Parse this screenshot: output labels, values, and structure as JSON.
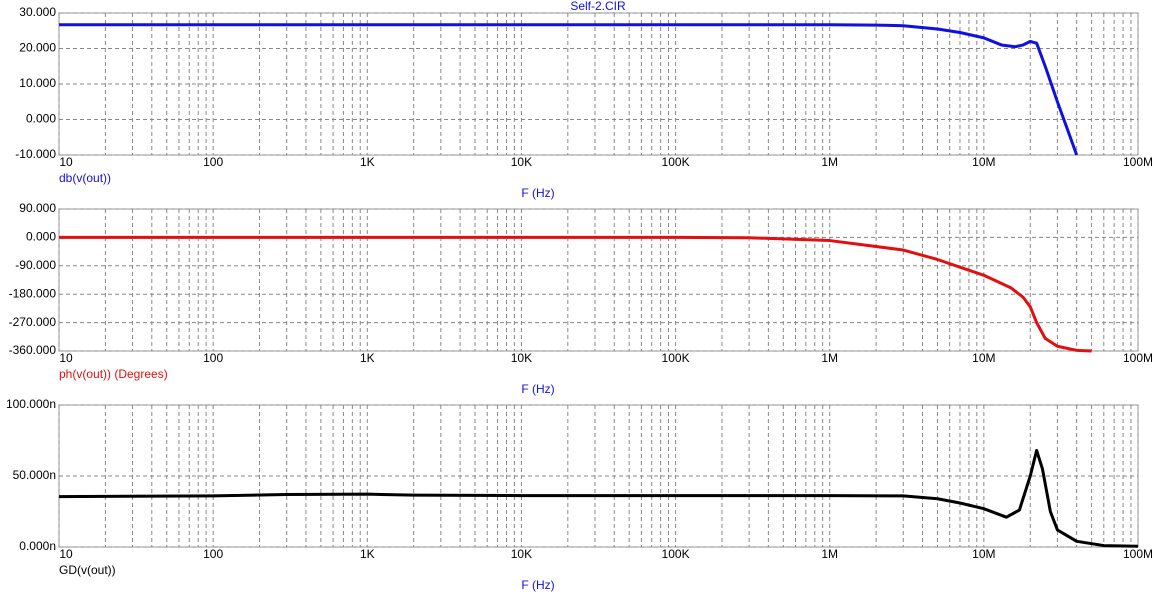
{
  "chart_data": [
    {
      "type": "line",
      "title": "Self-2.CIR",
      "xscale": "log",
      "grid": true,
      "xlabel": "F (Hz)",
      "x": [
        10,
        100,
        1000,
        10000,
        100000,
        1000000,
        2000000,
        3000000,
        5000000,
        7000000,
        10000000,
        13000000,
        16000000,
        18000000,
        20000000,
        22000000,
        25000000,
        30000000,
        35000000,
        40000000
      ],
      "series": [
        {
          "name": "db(v(out))",
          "color": "#1010e0",
          "values": [
            26.7,
            26.7,
            26.7,
            26.7,
            26.7,
            26.7,
            26.6,
            26.4,
            25.5,
            24.5,
            23,
            21,
            20.5,
            21,
            22,
            21.5,
            15,
            5,
            -3,
            -10
          ]
        }
      ],
      "xlim": [
        10,
        100000000
      ],
      "xticks": [
        10,
        100,
        {
          "value": 1000,
          "label": "1K"
        },
        {
          "value": 10000,
          "label": "10K"
        },
        {
          "value": 100000,
          "label": "100K"
        },
        {
          "value": 1000000,
          "label": "1M"
        },
        {
          "value": 10000000,
          "label": "10M"
        },
        {
          "value": 100000000,
          "label": "100M"
        }
      ],
      "minor_xticks": [
        20,
        30,
        40,
        50,
        60,
        70,
        80,
        90,
        200,
        300,
        400,
        500,
        600,
        700,
        800,
        900,
        2000,
        3000,
        4000,
        5000,
        6000,
        7000,
        8000,
        9000,
        20000,
        30000,
        40000,
        50000,
        60000,
        70000,
        80000,
        90000,
        200000,
        300000,
        400000,
        500000,
        600000,
        700000,
        800000,
        900000,
        2000000,
        3000000,
        4000000,
        5000000,
        6000000,
        7000000,
        8000000,
        9000000,
        20000000,
        30000000,
        40000000,
        50000000,
        60000000,
        70000000,
        80000000,
        90000000
      ],
      "ylim": [
        -10,
        30
      ],
      "yticks": [
        {
          "value": 30,
          "label": "30.000"
        },
        {
          "value": 20,
          "label": "20.000"
        },
        {
          "value": 10,
          "label": "10.000"
        },
        {
          "value": 0,
          "label": "0.000"
        },
        {
          "value": -10,
          "label": "-10.000"
        }
      ]
    },
    {
      "type": "line",
      "xscale": "log",
      "grid": true,
      "xlabel": "F (Hz)",
      "x": [
        10,
        100,
        1000,
        10000,
        100000,
        300000,
        1000000,
        3000000,
        5000000,
        10000000,
        15000000,
        18000000,
        20000000,
        22000000,
        25000000,
        30000000,
        40000000,
        50000000
      ],
      "series": [
        {
          "name": "ph(v(out)) (Degrees)",
          "color": "#e01010",
          "values": [
            0,
            0,
            0,
            0,
            0,
            -1,
            -10,
            -40,
            -70,
            -120,
            -160,
            -190,
            -220,
            -270,
            -320,
            -345,
            -358,
            -360
          ]
        }
      ],
      "xlim": [
        10,
        100000000
      ],
      "xticks": [
        10,
        100,
        {
          "value": 1000,
          "label": "1K"
        },
        {
          "value": 10000,
          "label": "10K"
        },
        {
          "value": 100000,
          "label": "100K"
        },
        {
          "value": 1000000,
          "label": "1M"
        },
        {
          "value": 10000000,
          "label": "10M"
        },
        {
          "value": 100000000,
          "label": "100M"
        }
      ],
      "minor_xticks": [
        20,
        30,
        40,
        50,
        60,
        70,
        80,
        90,
        200,
        300,
        400,
        500,
        600,
        700,
        800,
        900,
        2000,
        3000,
        4000,
        5000,
        6000,
        7000,
        8000,
        9000,
        20000,
        30000,
        40000,
        50000,
        60000,
        70000,
        80000,
        90000,
        200000,
        300000,
        400000,
        500000,
        600000,
        700000,
        800000,
        900000,
        2000000,
        3000000,
        4000000,
        5000000,
        6000000,
        7000000,
        8000000,
        9000000,
        20000000,
        30000000,
        40000000,
        50000000,
        60000000,
        70000000,
        80000000,
        90000000
      ],
      "ylim": [
        -360,
        90
      ],
      "yticks": [
        {
          "value": 90,
          "label": "90.000"
        },
        {
          "value": 0,
          "label": "0.000"
        },
        {
          "value": -90,
          "label": "-90.000"
        },
        {
          "value": -180,
          "label": "-180.000"
        },
        {
          "value": -270,
          "label": "-270.000"
        },
        {
          "value": -360,
          "label": "-360.000"
        }
      ]
    },
    {
      "type": "line",
      "xscale": "log",
      "grid": true,
      "xlabel": "F (Hz)",
      "x": [
        10,
        100,
        300,
        1000,
        2000,
        10000,
        100000,
        1000000,
        3000000,
        5000000,
        7000000,
        10000000,
        14000000,
        17000000,
        20000000,
        22000000,
        24000000,
        27000000,
        30000000,
        40000000,
        60000000,
        100000000
      ],
      "series": [
        {
          "name": "GD(v(out))",
          "color": "#000000",
          "values": [
            3.55e-08,
            3.6e-08,
            3.7e-08,
            3.72e-08,
            3.65e-08,
            3.62e-08,
            3.62e-08,
            3.62e-08,
            3.6e-08,
            3.4e-08,
            3.1e-08,
            2.7e-08,
            2.1e-08,
            2.6e-08,
            5e-08,
            6.8e-08,
            5.5e-08,
            2.5e-08,
            1.2e-08,
            4e-09,
            1e-09,
            5e-10
          ]
        }
      ],
      "xlim": [
        10,
        100000000
      ],
      "xticks": [
        10,
        100,
        {
          "value": 1000,
          "label": "1K"
        },
        {
          "value": 10000,
          "label": "10K"
        },
        {
          "value": 100000,
          "label": "100K"
        },
        {
          "value": 1000000,
          "label": "1M"
        },
        {
          "value": 10000000,
          "label": "10M"
        },
        {
          "value": 100000000,
          "label": "100M"
        }
      ],
      "minor_xticks": [
        20,
        30,
        40,
        50,
        60,
        70,
        80,
        90,
        200,
        300,
        400,
        500,
        600,
        700,
        800,
        900,
        2000,
        3000,
        4000,
        5000,
        6000,
        7000,
        8000,
        9000,
        20000,
        30000,
        40000,
        50000,
        60000,
        70000,
        80000,
        90000,
        200000,
        300000,
        400000,
        500000,
        600000,
        700000,
        800000,
        900000,
        2000000,
        3000000,
        4000000,
        5000000,
        6000000,
        7000000,
        8000000,
        9000000,
        20000000,
        30000000,
        40000000,
        50000000,
        60000000,
        70000000,
        80000000,
        90000000
      ],
      "ylim": [
        0,
        1e-07
      ],
      "yticks": [
        {
          "value": 1e-07,
          "label": "100.000n"
        },
        {
          "value": 5e-08,
          "label": "50.000n"
        },
        {
          "value": 0,
          "label": "0.000n"
        }
      ]
    }
  ]
}
